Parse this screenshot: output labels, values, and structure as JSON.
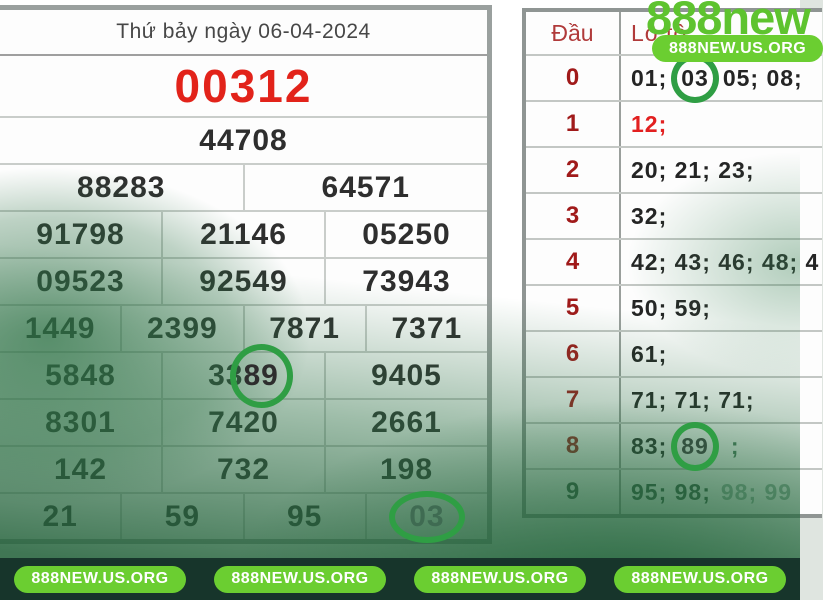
{
  "watermark": {
    "logo_text": "888new",
    "badge_text": "888NEW.US.ORG",
    "footer_badges": [
      "888NEW.US.ORG",
      "888NEW.US.ORG",
      "888NEW.US.ORG",
      "888NEW.US.ORG"
    ]
  },
  "colors": {
    "accent_green": "#5ec32f",
    "badge_green": "#6bce31",
    "circle_green": "#2f9e44",
    "special_red": "#e2231a",
    "dark_red": "#a01a1a",
    "footer_bg": "#17352b"
  },
  "result_board": {
    "date_title": "Thứ bảy ngày 06-04-2024",
    "special_prize": "00312",
    "prize1": "44708",
    "prize2": [
      "88283",
      "64571"
    ],
    "prize3_row1": [
      "91798",
      "21146",
      "05250"
    ],
    "prize3_row2": [
      "09523",
      "92549",
      "73943"
    ],
    "prize4": [
      "1449",
      "2399",
      "7871",
      "7371"
    ],
    "prize5_row1_c1": "5848",
    "prize5_row1_c2_pre": "33",
    "prize5_row1_c2_circled": "89",
    "prize5_row1_c3": "9405",
    "prize5_row2": [
      "8301",
      "7420",
      "2661"
    ],
    "prize6": [
      "142",
      "732",
      "198"
    ],
    "prize7_c1": "21",
    "prize7_c2": "59",
    "prize7_c3": "95",
    "prize7_c4_circled": "03"
  },
  "dau_lo_table": {
    "col1_header": "Đầu",
    "col2_header": "Lô tô",
    "rows": [
      {
        "dau": "0",
        "pre": "01;",
        "circled": "03",
        "post": "05; 08;"
      },
      {
        "dau": "1",
        "pre": "12;"
      },
      {
        "dau": "2",
        "pre": "20; 21; 23;"
      },
      {
        "dau": "3",
        "pre": "32;"
      },
      {
        "dau": "4",
        "pre": "42; 43; 46; 48; 4"
      },
      {
        "dau": "5",
        "pre": "50; 59;"
      },
      {
        "dau": "6",
        "pre": "61;"
      },
      {
        "dau": "7",
        "pre": "71; 71; 71;"
      },
      {
        "dau": "8",
        "pre": "83;",
        "circled": "89",
        "post": ";"
      },
      {
        "dau": "9",
        "pre": "95; 98;",
        "post": "98; 99"
      }
    ]
  }
}
